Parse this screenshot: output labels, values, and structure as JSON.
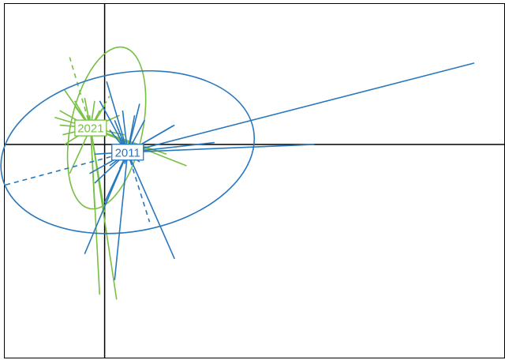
{
  "chart_data": {
    "type": "scatter",
    "title": "",
    "xlabel": "",
    "ylabel": "",
    "xlim": [
      -1.0,
      4.0
    ],
    "ylim": [
      -2.2,
      1.45
    ],
    "grid": false,
    "axes_at_origin": true,
    "colors": {
      "2011": "#2878BE",
      "2021": "#77C043"
    },
    "groups": [
      {
        "label": "2011",
        "color": "#2878BE",
        "centroid": [
          0.23,
          -0.08
        ],
        "ellipse": {
          "cx": 0.23,
          "cy": -0.08,
          "rx": 1.28,
          "ry": 0.82,
          "rotation_deg": -10
        },
        "members": [
          [
            3.7,
            0.84
          ],
          [
            2.1,
            0.0
          ],
          [
            1.1,
            0.02
          ],
          [
            0.7,
            0.2
          ],
          [
            0.68,
            0.19
          ],
          [
            0.35,
            0.42
          ],
          [
            0.7,
            -1.18
          ],
          [
            -0.2,
            -1.13
          ],
          [
            0.1,
            -1.4
          ],
          [
            0.0,
            -0.6
          ],
          [
            -0.1,
            -0.4
          ],
          [
            -0.15,
            -0.3
          ],
          [
            -0.1,
            -0.1
          ],
          [
            0.02,
            0.65
          ],
          [
            -0.05,
            0.45
          ],
          [
            0.18,
            0.35
          ],
          [
            0.1,
            0.25
          ],
          [
            0.05,
            0.15
          ],
          [
            0.15,
            0.05
          ],
          [
            0.35,
            -0.18
          ],
          [
            0.2,
            -0.2
          ],
          [
            0.15,
            -0.25
          ],
          [
            0.05,
            -0.22
          ],
          [
            0.3,
            0.3
          ],
          [
            0.4,
            0.25
          ]
        ],
        "dashed": [
          [
            -1.0,
            -0.42
          ],
          [
            0.45,
            -0.8
          ]
        ]
      },
      {
        "label": "2021",
        "color": "#77C043",
        "centroid": [
          -0.14,
          0.17
        ],
        "ellipse": {
          "cx": 0.02,
          "cy": 0.17,
          "rx": 0.36,
          "ry": 0.85,
          "rotation_deg": 12
        },
        "members": [
          [
            -0.4,
            0.56
          ],
          [
            -0.3,
            0.45
          ],
          [
            -0.45,
            0.35
          ],
          [
            -0.5,
            0.28
          ],
          [
            -0.45,
            0.2
          ],
          [
            -0.3,
            0.4
          ],
          [
            -0.2,
            0.48
          ],
          [
            -0.1,
            0.45
          ],
          [
            -0.05,
            0.35
          ],
          [
            -0.42,
            0.1
          ],
          [
            -0.4,
            0.0
          ],
          [
            -0.35,
            -0.3
          ],
          [
            -0.1,
            -0.65
          ],
          [
            0.0,
            -0.7
          ],
          [
            -0.05,
            -1.55
          ],
          [
            0.12,
            -1.6
          ],
          [
            0.82,
            -0.22
          ],
          [
            0.62,
            -0.1
          ],
          [
            0.45,
            -0.05
          ],
          [
            0.2,
            0.1
          ],
          [
            0.15,
            0.3
          ],
          [
            -0.2,
            0.2
          ],
          [
            -0.15,
            0.3
          ],
          [
            0.0,
            0.4
          ]
        ],
        "dashed": [
          [
            -0.35,
            0.9
          ],
          [
            0.05,
            0.5
          ]
        ]
      }
    ]
  }
}
